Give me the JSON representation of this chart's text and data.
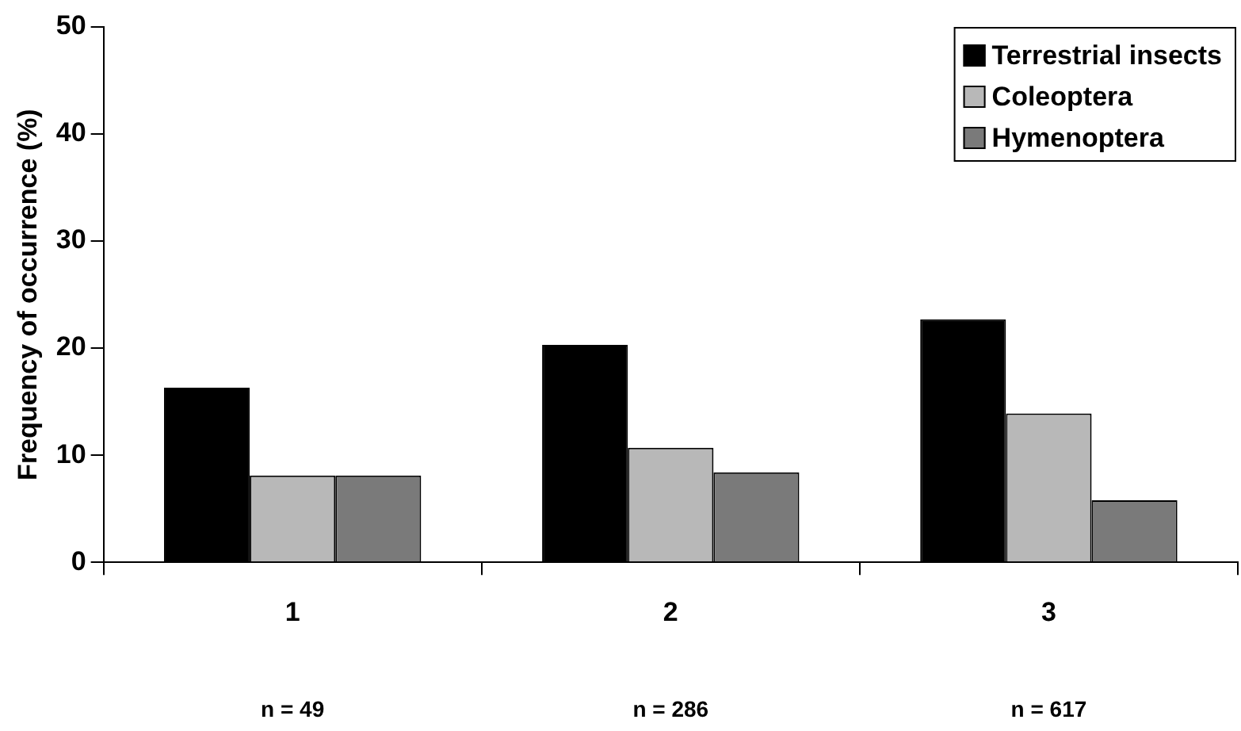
{
  "chart_data": {
    "type": "bar",
    "ylabel": "Frequency of occurrence (%)",
    "categories": [
      "1",
      "2",
      "3"
    ],
    "series": [
      {
        "name": "Terrestrial insects",
        "color": "#000000",
        "values": [
          16.3,
          20.3,
          22.7
        ]
      },
      {
        "name": "Coleoptera",
        "color": "#b8b8b8",
        "values": [
          8.1,
          10.7,
          13.9
        ]
      },
      {
        "name": "Hymenoptera",
        "color": "#7a7a7a",
        "values": [
          8.1,
          8.4,
          5.8
        ]
      }
    ],
    "ylim": [
      0,
      50
    ],
    "yticks": [
      0,
      10,
      20,
      30,
      40,
      50
    ],
    "grid": false,
    "legend": "top right",
    "annotations": [
      "n = 49",
      "n = 286",
      "n = 617"
    ]
  }
}
